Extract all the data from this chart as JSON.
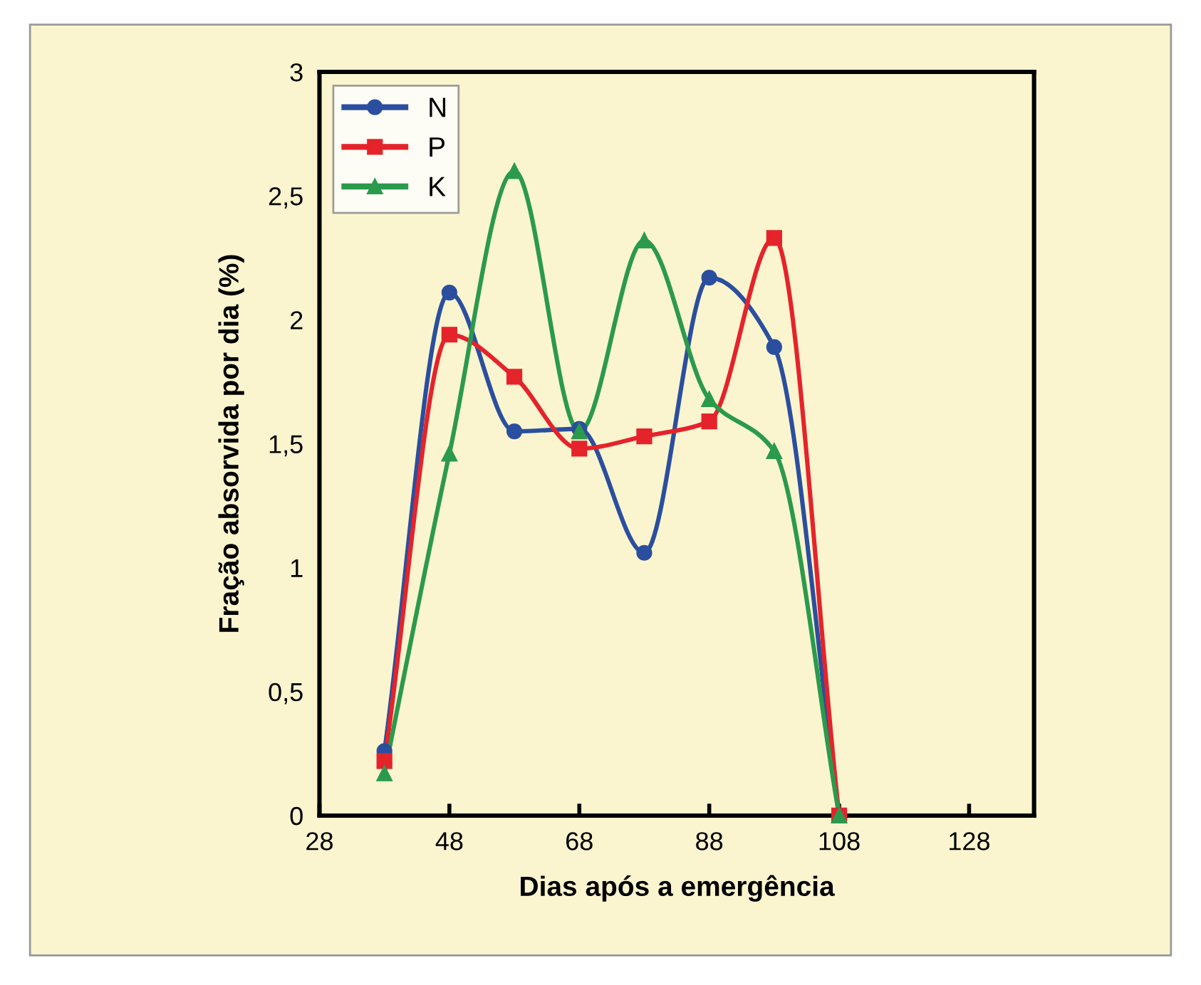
{
  "chart_data": {
    "type": "line",
    "xlabel": "Dias após a emergência",
    "ylabel": "Fração absorvida por dia (%)",
    "x": [
      38,
      48,
      58,
      68,
      78,
      88,
      98,
      108
    ],
    "series": [
      {
        "name": "N",
        "color": "#2b4f9e",
        "marker": "circle",
        "values": [
          0.26,
          2.11,
          1.55,
          1.56,
          1.06,
          2.17,
          1.89,
          0
        ]
      },
      {
        "name": "P",
        "color": "#e5232b",
        "marker": "square",
        "values": [
          0.22,
          1.94,
          1.77,
          1.48,
          1.53,
          1.59,
          2.33,
          0
        ]
      },
      {
        "name": "K",
        "color": "#2b9a4c",
        "marker": "triangle",
        "values": [
          0.17,
          1.46,
          2.6,
          1.55,
          2.32,
          1.68,
          1.47,
          0
        ]
      }
    ],
    "xlim": [
      28,
      138
    ],
    "xticks": [
      28,
      48,
      68,
      88,
      108,
      128
    ],
    "ylim": [
      0,
      3
    ],
    "yticks": [
      {
        "value": 0,
        "label": "0"
      },
      {
        "value": 0.5,
        "label": "0,5"
      },
      {
        "value": 1,
        "label": "1"
      },
      {
        "value": 1.5,
        "label": "1,5"
      },
      {
        "value": 2,
        "label": "2"
      },
      {
        "value": 2.5,
        "label": "2,5"
      },
      {
        "value": 3,
        "label": "3"
      }
    ],
    "legend": "top left",
    "grid": false,
    "line_style": "solid"
  }
}
